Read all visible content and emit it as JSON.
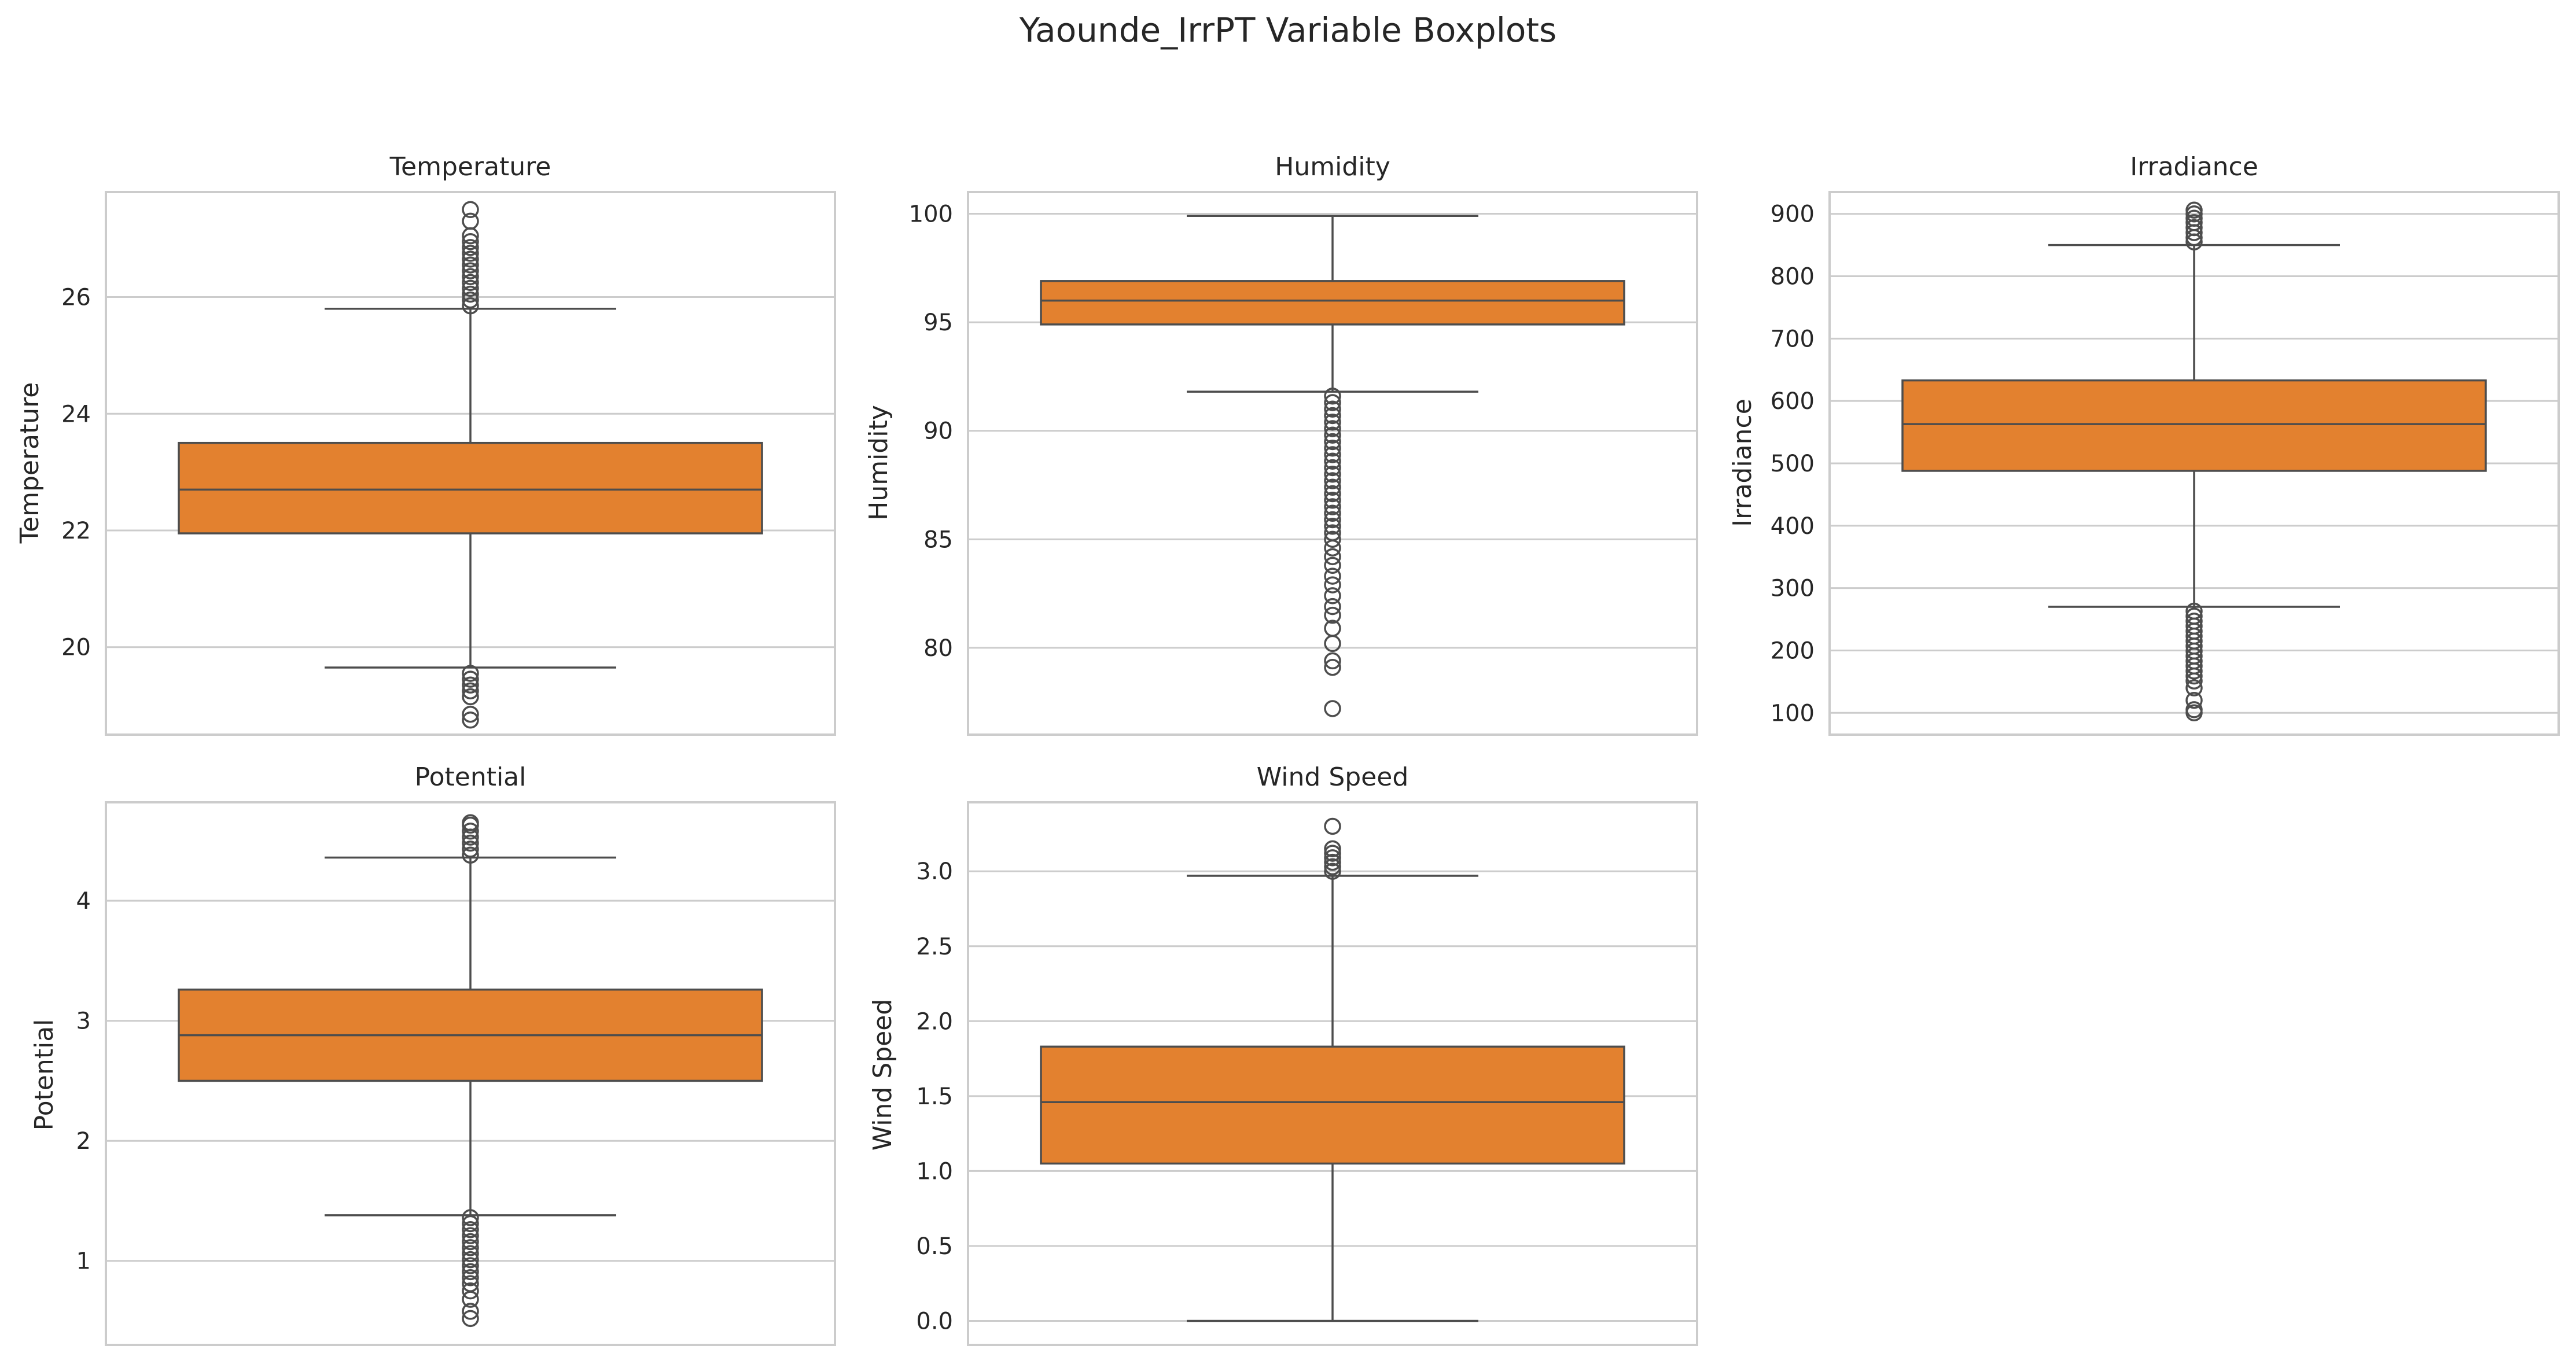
{
  "figure": {
    "title": "Yaounde_IrrPT Variable Boxplots"
  },
  "chart_data": [
    {
      "type": "box",
      "title": "Temperature",
      "ylabel": "Temperature",
      "ylim": [
        18.5,
        27.8
      ],
      "yticks": [
        20,
        22,
        24,
        26
      ],
      "ytick_labels": [
        "20",
        "22",
        "24",
        "26"
      ],
      "whisker_low": 19.65,
      "q1": 21.95,
      "median": 22.7,
      "q3": 23.5,
      "whisker_high": 25.8,
      "outliers": [
        25.85,
        25.95,
        26.05,
        26.15,
        26.25,
        26.35,
        26.45,
        26.55,
        26.65,
        26.75,
        26.85,
        26.95,
        27.05,
        27.3,
        27.5,
        19.55,
        19.45,
        19.35,
        19.25,
        19.15,
        18.85,
        18.75
      ],
      "color": "#e3812f",
      "line_color": "#4d4d4d",
      "grid": true
    },
    {
      "type": "box",
      "title": "Humidity",
      "ylabel": "Humidity",
      "ylim": [
        76.0,
        101.0
      ],
      "yticks": [
        80,
        85,
        90,
        95,
        100
      ],
      "ytick_labels": [
        "80",
        "85",
        "90",
        "95",
        "100"
      ],
      "whisker_low": 91.8,
      "q1": 94.9,
      "median": 96.0,
      "q3": 96.9,
      "whisker_high": 99.9,
      "outliers": [
        91.6,
        91.3,
        91.0,
        90.7,
        90.4,
        90.1,
        89.8,
        89.5,
        89.2,
        88.9,
        88.6,
        88.3,
        88.0,
        87.7,
        87.4,
        87.1,
        86.8,
        86.5,
        86.2,
        85.9,
        85.6,
        85.3,
        85.0,
        84.6,
        84.2,
        83.8,
        83.3,
        82.9,
        82.4,
        81.9,
        81.5,
        80.9,
        80.2,
        79.4,
        79.1,
        77.2
      ],
      "color": "#e3812f",
      "line_color": "#4d4d4d",
      "grid": true
    },
    {
      "type": "box",
      "title": "Irradiance",
      "ylabel": "Irradiance",
      "ylim": [
        65,
        935
      ],
      "yticks": [
        100,
        200,
        300,
        400,
        500,
        600,
        700,
        800,
        900
      ],
      "ytick_labels": [
        "100",
        "200",
        "300",
        "400",
        "500",
        "600",
        "700",
        "800",
        "900"
      ],
      "whisker_low": 270,
      "q1": 488,
      "median": 563,
      "q3": 633,
      "whisker_high": 850,
      "outliers": [
        855,
        862,
        870,
        878,
        886,
        893,
        900,
        906,
        263,
        255,
        247,
        239,
        231,
        223,
        215,
        207,
        199,
        191,
        183,
        175,
        167,
        159,
        151,
        140,
        120,
        105,
        100
      ],
      "color": "#e3812f",
      "line_color": "#4d4d4d",
      "grid": true
    },
    {
      "type": "box",
      "title": "Potential",
      "ylabel": "Potential",
      "ylim": [
        0.3,
        4.82
      ],
      "yticks": [
        1,
        2,
        3,
        4
      ],
      "ytick_labels": [
        "1",
        "2",
        "3",
        "4"
      ],
      "whisker_low": 1.38,
      "q1": 2.5,
      "median": 2.88,
      "q3": 3.26,
      "whisker_high": 4.36,
      "outliers": [
        4.38,
        4.43,
        4.48,
        4.53,
        4.58,
        4.63,
        4.65,
        1.36,
        1.31,
        1.26,
        1.21,
        1.16,
        1.11,
        1.06,
        1.01,
        0.96,
        0.91,
        0.86,
        0.81,
        0.75,
        0.68,
        0.58,
        0.52
      ],
      "color": "#e3812f",
      "line_color": "#4d4d4d",
      "grid": true
    },
    {
      "type": "box",
      "title": "Wind Speed",
      "ylabel": "Wind Speed",
      "ylim": [
        -0.16,
        3.46
      ],
      "yticks": [
        0.0,
        0.5,
        1.0,
        1.5,
        2.0,
        2.5,
        3.0
      ],
      "ytick_labels": [
        "0.0",
        "0.5",
        "1.0",
        "1.5",
        "2.0",
        "2.5",
        "3.0"
      ],
      "whisker_low": 0.0,
      "q1": 1.05,
      "median": 1.46,
      "q3": 1.83,
      "whisker_high": 2.97,
      "outliers": [
        3.0,
        3.03,
        3.06,
        3.09,
        3.12,
        3.15,
        3.3
      ],
      "color": "#e3812f",
      "line_color": "#4d4d4d",
      "grid": true
    }
  ]
}
